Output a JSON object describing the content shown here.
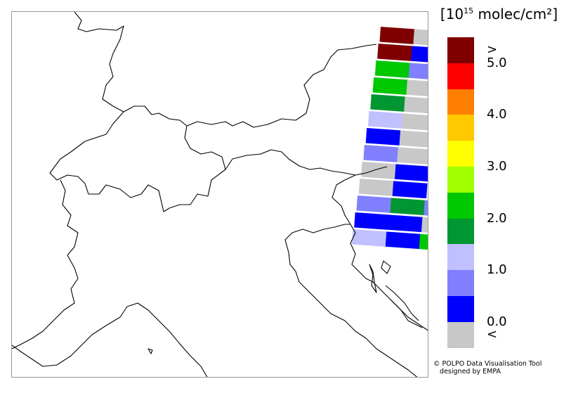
{
  "legend": {
    "unit_base": "10",
    "unit_exp": "15",
    "unit_rest": " molec/cm²",
    "bins": [
      {
        "color": "#800000"
      },
      {
        "color": "#ff0000"
      },
      {
        "color": "#ff8000"
      },
      {
        "color": "#ffc800"
      },
      {
        "color": "#ffff00"
      },
      {
        "color": "#a0ff00"
      },
      {
        "color": "#00c800"
      },
      {
        "color": "#009632"
      },
      {
        "color": "#c0c0ff"
      },
      {
        "color": "#8080ff"
      },
      {
        "color": "#0000ff"
      },
      {
        "color": "#c8c8c8"
      }
    ],
    "labels": [
      {
        "text": ">",
        "at": 0.5
      },
      {
        "text": "5.0",
        "at": 1
      },
      {
        "text": "4.0",
        "at": 3
      },
      {
        "text": "3.0",
        "at": 5
      },
      {
        "text": "2.0",
        "at": 7
      },
      {
        "text": "1.0",
        "at": 9
      },
      {
        "text": "0.0",
        "at": 11
      },
      {
        "text": "<",
        "at": 11.5
      }
    ]
  },
  "credit": {
    "line1": "© POLPO Data Visualisation Tool",
    "line2": "   designed by EMPA"
  },
  "satellite_rows": [
    [
      "#800000",
      "#c8c8c8"
    ],
    [
      "#800000",
      "#0000ff"
    ],
    [
      "#00c800",
      "#8080ff"
    ],
    [
      "#00c800",
      "#c8c8c8"
    ],
    [
      "#009632",
      "#c8c8c8"
    ],
    [
      "#c0c0ff",
      "#c8c8c8"
    ],
    [
      "#0000ff",
      "#c8c8c8"
    ],
    [
      "#8080ff",
      "#c8c8c8"
    ],
    [
      "#c8c8c8",
      "#0000ff"
    ],
    [
      "#c8c8c8",
      "#0000ff"
    ],
    [
      "#8080ff",
      "#009632",
      "#8080ff"
    ],
    [
      "#0000ff",
      "#0000ff",
      "#c8c8c8"
    ],
    [
      "#c0c0ff",
      "#0000ff",
      "#00c800"
    ]
  ]
}
